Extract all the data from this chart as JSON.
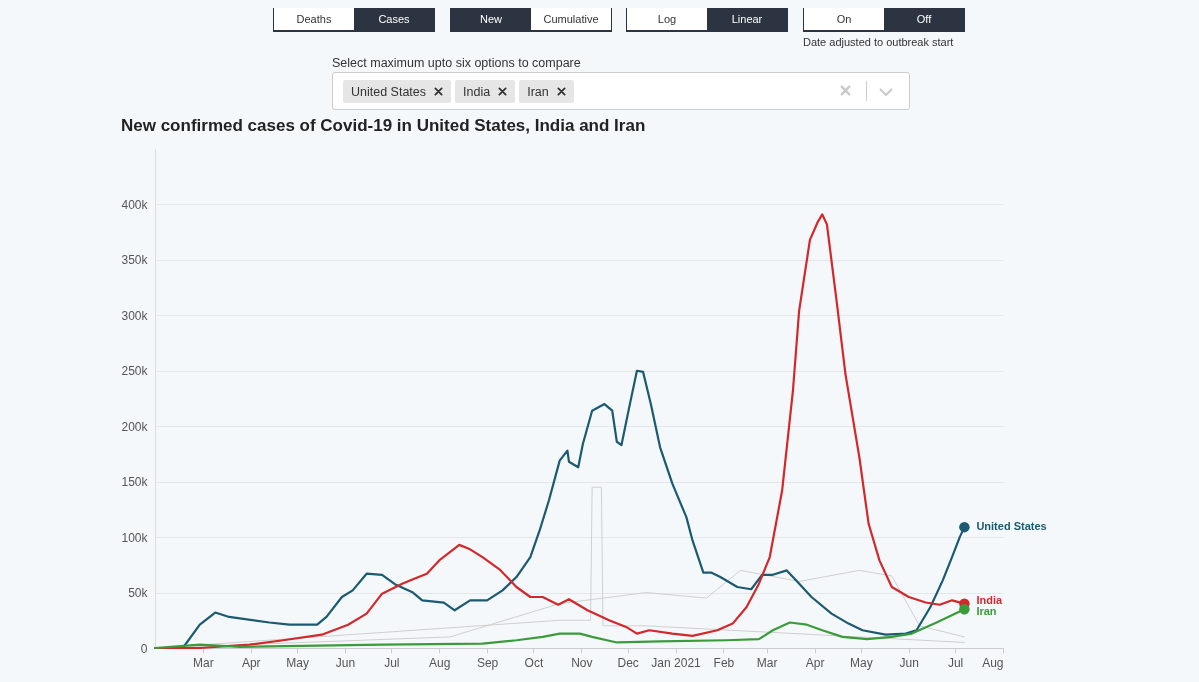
{
  "chart_data": {
    "type": "line",
    "title": "New confirmed cases of Covid-19 in United States, India and Iran",
    "annotations": [
      "Deaths",
      "Cases",
      "New",
      "Cumulative",
      "Log",
      "Linear",
      "On",
      "Off",
      "Date adjusted to outbreak start",
      "Select maximum upto six options to compare",
      "United States",
      "India",
      "Iran"
    ],
    "xlim": [
      "2020-01-30",
      "2021-08-01"
    ],
    "xticks": [
      {
        "value": "2020-03-01",
        "label": "Mar"
      },
      {
        "value": "2020-04-01",
        "label": "Apr"
      },
      {
        "value": "2020-05-01",
        "label": "May"
      },
      {
        "value": "2020-06-01",
        "label": "Jun"
      },
      {
        "value": "2020-07-01",
        "label": "Jul"
      },
      {
        "value": "2020-08-01",
        "label": "Aug"
      },
      {
        "value": "2020-09-01",
        "label": "Sep"
      },
      {
        "value": "2020-10-01",
        "label": "Oct"
      },
      {
        "value": "2020-11-01",
        "label": "Nov"
      },
      {
        "value": "2020-12-01",
        "label": "Dec"
      },
      {
        "value": "2021-01-01",
        "label": "Jan 2021"
      },
      {
        "value": "2021-02-01",
        "label": "Feb"
      },
      {
        "value": "2021-03-01",
        "label": "Mar"
      },
      {
        "value": "2021-04-01",
        "label": "Apr"
      },
      {
        "value": "2021-05-01",
        "label": "May"
      },
      {
        "value": "2021-06-01",
        "label": "Jun"
      },
      {
        "value": "2021-07-01",
        "label": "Jul"
      },
      {
        "value": "2021-08-01",
        "label": "Aug"
      }
    ],
    "ylim": [
      0,
      450000
    ],
    "yticks": [
      {
        "value": 0,
        "label": "0"
      },
      {
        "value": 50000,
        "label": "50k"
      },
      {
        "value": 100000,
        "label": "100k"
      },
      {
        "value": 150000,
        "label": "150k"
      },
      {
        "value": 200000,
        "label": "200k"
      },
      {
        "value": 250000,
        "label": "250k"
      },
      {
        "value": 300000,
        "label": "300k"
      },
      {
        "value": 350000,
        "label": "350k"
      },
      {
        "value": 400000,
        "label": "400k"
      }
    ],
    "grid": "y",
    "series": [
      {
        "color": "#cfcfcf",
        "x": [
          "2020-01-30",
          "2020-10-18",
          "2020-11-07",
          "2020-11-08",
          "2020-11-14",
          "2020-11-15",
          "2020-12-13",
          "2021-07-07"
        ],
        "values": [
          0,
          25000,
          25000,
          145000,
          145000,
          20000,
          20000,
          5000
        ]
      },
      {
        "color": "#cfcfcf",
        "x": [
          "2020-01-30",
          "2020-08-08",
          "2020-10-18",
          "2020-12-13",
          "2021-01-21",
          "2021-02-12",
          "2021-03-22",
          "2021-04-30",
          "2021-05-21",
          "2021-06-08",
          "2021-07-07"
        ],
        "values": [
          0,
          10000,
          40000,
          50000,
          45000,
          70000,
          60000,
          70000,
          65000,
          20000,
          10000
        ]
      },
      {
        "name": "United States",
        "color": "#1b5a70",
        "x": [
          "2020-01-30",
          "2020-02-17",
          "2020-02-28",
          "2020-03-09",
          "2020-03-18",
          "2020-04-13",
          "2020-04-26",
          "2020-05-14",
          "2020-05-20",
          "2020-05-30",
          "2020-06-06",
          "2020-06-15",
          "2020-06-25",
          "2020-07-04",
          "2020-07-15",
          "2020-07-21",
          "2020-08-04",
          "2020-08-11",
          "2020-08-21",
          "2020-09-01",
          "2020-09-11",
          "2020-09-20",
          "2020-09-29",
          "2020-10-05",
          "2020-10-11",
          "2020-10-18",
          "2020-10-23",
          "2020-10-24",
          "2020-10-30",
          "2020-11-02",
          "2020-11-08",
          "2020-11-16",
          "2020-11-21",
          "2020-11-24",
          "2020-11-27",
          "2020-12-02",
          "2020-12-07",
          "2020-12-11",
          "2020-12-16",
          "2020-12-22",
          "2020-12-30",
          "2021-01-08",
          "2021-01-12",
          "2021-01-19",
          "2021-01-24",
          "2021-01-30",
          "2021-02-10",
          "2021-02-19",
          "2021-02-26",
          "2021-03-05",
          "2021-03-14",
          "2021-03-20",
          "2021-03-30",
          "2021-04-12",
          "2021-04-23",
          "2021-05-02",
          "2021-05-17",
          "2021-05-30",
          "2021-06-06",
          "2021-06-15",
          "2021-06-23",
          "2021-06-29",
          "2021-07-04",
          "2021-07-07"
        ],
        "values": [
          0,
          0,
          21000,
          32000,
          28000,
          23000,
          21000,
          21000,
          28000,
          46000,
          52000,
          67000,
          66000,
          57000,
          50000,
          43000,
          41000,
          34000,
          43000,
          43000,
          52000,
          64000,
          82000,
          106000,
          133000,
          169000,
          178000,
          168000,
          163000,
          184000,
          214000,
          220000,
          214000,
          186000,
          183000,
          217000,
          250000,
          249000,
          220000,
          181000,
          148000,
          118000,
          97000,
          68000,
          68000,
          64000,
          55000,
          53000,
          66000,
          66000,
          70000,
          61000,
          46000,
          31000,
          22000,
          16000,
          12000,
          13000,
          16000,
          37000,
          61000,
          82000,
          100000,
          109000
        ]
      },
      {
        "name": "India",
        "color": "#d3282b",
        "x": [
          "2020-01-30",
          "2020-02-28",
          "2020-03-31",
          "2020-04-22",
          "2020-05-17",
          "2020-06-03",
          "2020-06-15",
          "2020-06-25",
          "2020-07-08",
          "2020-07-15",
          "2020-07-24",
          "2020-08-01",
          "2020-08-14",
          "2020-08-21",
          "2020-08-29",
          "2020-09-09",
          "2020-09-20",
          "2020-09-29",
          "2020-10-07",
          "2020-10-17",
          "2020-10-24",
          "2020-11-05",
          "2020-11-19",
          "2020-11-30",
          "2020-12-07",
          "2020-12-15",
          "2020-12-30",
          "2021-01-12",
          "2021-01-28",
          "2021-02-07",
          "2021-02-16",
          "2021-02-24",
          "2021-03-03",
          "2021-03-11",
          "2021-03-18",
          "2021-03-22",
          "2021-03-29",
          "2021-04-03",
          "2021-04-06",
          "2021-04-09",
          "2021-04-15",
          "2021-04-21",
          "2021-04-30",
          "2021-05-06",
          "2021-05-13",
          "2021-05-21",
          "2021-06-01",
          "2021-06-12",
          "2021-06-21",
          "2021-06-29",
          "2021-07-07"
        ],
        "values": [
          0,
          0,
          3000,
          7000,
          12000,
          21000,
          31000,
          49000,
          58000,
          62000,
          67000,
          79000,
          93000,
          89000,
          82000,
          71000,
          55000,
          46000,
          46000,
          39000,
          44000,
          34000,
          25000,
          19000,
          13000,
          16000,
          13000,
          11000,
          16000,
          22000,
          37000,
          58000,
          82000,
          142000,
          232000,
          304000,
          368000,
          384000,
          391000,
          382000,
          316000,
          247000,
          172000,
          112000,
          79000,
          55000,
          46000,
          41000,
          39000,
          43000,
          40000
        ]
      },
      {
        "name": "Iran",
        "color": "#3a9b3a",
        "x": [
          "2020-01-30",
          "2020-02-28",
          "2020-03-25",
          "2020-06-25",
          "2020-08-29",
          "2020-09-20",
          "2020-10-07",
          "2020-10-18",
          "2020-10-31",
          "2020-11-08",
          "2020-11-24",
          "2020-12-22",
          "2021-02-03",
          "2021-02-24",
          "2021-03-05",
          "2021-03-16",
          "2021-03-27",
          "2021-04-06",
          "2021-04-19",
          "2021-05-05",
          "2021-05-21",
          "2021-06-03",
          "2021-06-19",
          "2021-07-07"
        ],
        "values": [
          0,
          3000,
          1000,
          3000,
          4000,
          7000,
          10000,
          13000,
          13000,
          10000,
          5000,
          6000,
          7000,
          8000,
          16000,
          23000,
          21000,
          16000,
          10000,
          8000,
          10000,
          13000,
          23000,
          35000
        ]
      }
    ]
  }
}
